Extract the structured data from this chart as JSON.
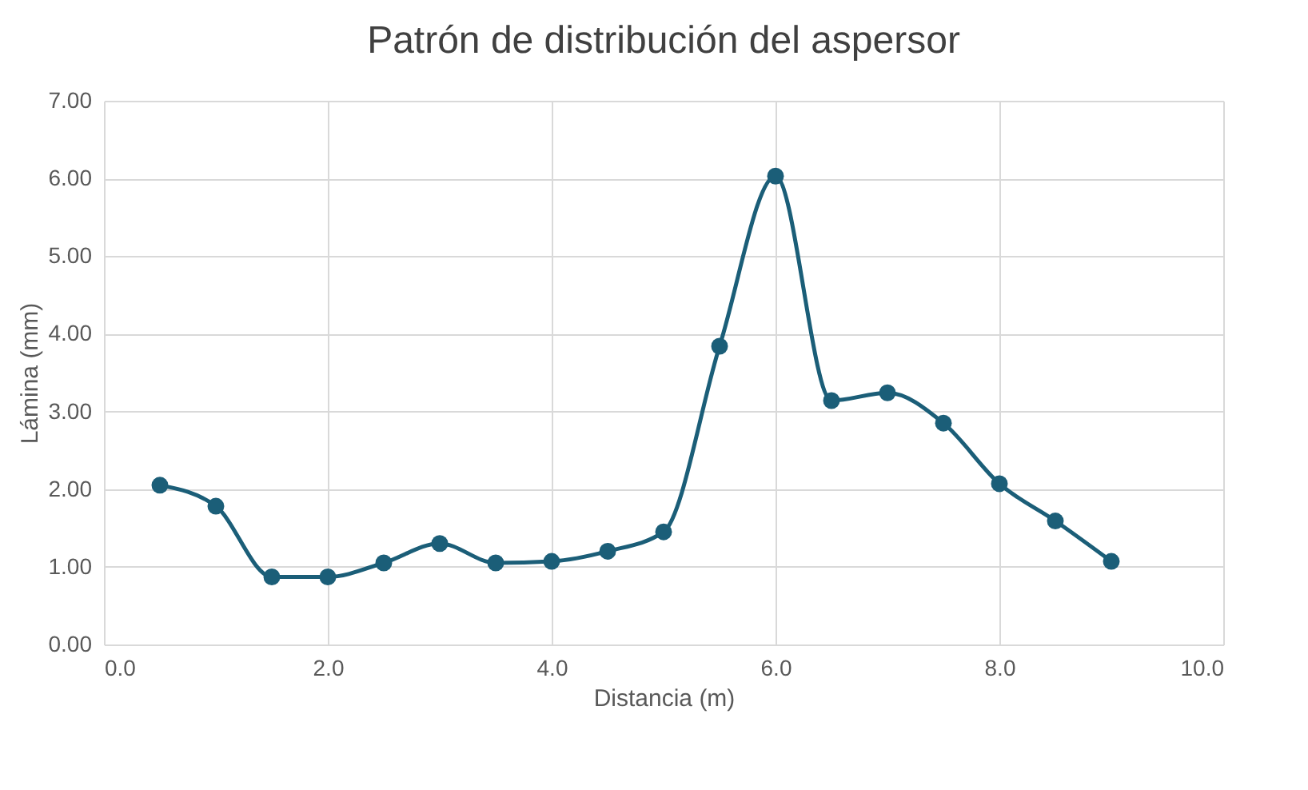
{
  "chart_data": {
    "type": "line",
    "title": "Patrón de distribución del aspersor",
    "xlabel": "Distancia (m)",
    "ylabel": "Lámina (mm)",
    "x": [
      0.5,
      1.0,
      1.5,
      2.0,
      2.5,
      3.0,
      3.5,
      4.0,
      4.5,
      5.0,
      5.5,
      6.0,
      6.5,
      7.0,
      7.5,
      8.0,
      8.5,
      9.0
    ],
    "series": [
      {
        "color": "#1b5e78",
        "values": [
          2.05,
          1.78,
          0.87,
          0.87,
          1.05,
          1.3,
          1.05,
          1.07,
          1.2,
          1.45,
          3.84,
          6.03,
          3.14,
          3.24,
          2.85,
          2.07,
          1.59,
          1.07
        ]
      }
    ],
    "xlim": [
      0,
      10
    ],
    "xticks": [
      {
        "value": 0,
        "label": "0.0"
      },
      {
        "value": 2,
        "label": "2.0"
      },
      {
        "value": 4,
        "label": "4.0"
      },
      {
        "value": 6,
        "label": "6.0"
      },
      {
        "value": 8,
        "label": "8.0"
      },
      {
        "value": 10,
        "label": "10.0"
      }
    ],
    "ylim": [
      0,
      7
    ],
    "yticks": [
      {
        "value": 0,
        "label": "0.00"
      },
      {
        "value": 1,
        "label": "1.00"
      },
      {
        "value": 2,
        "label": "2.00"
      },
      {
        "value": 3,
        "label": "3.00"
      },
      {
        "value": 4,
        "label": "4.00"
      },
      {
        "value": 5,
        "label": "5.00"
      },
      {
        "value": 6,
        "label": "6.00"
      },
      {
        "value": 7,
        "label": "7.00"
      }
    ],
    "grid": true,
    "marker": "circle",
    "line_style": "solid"
  }
}
